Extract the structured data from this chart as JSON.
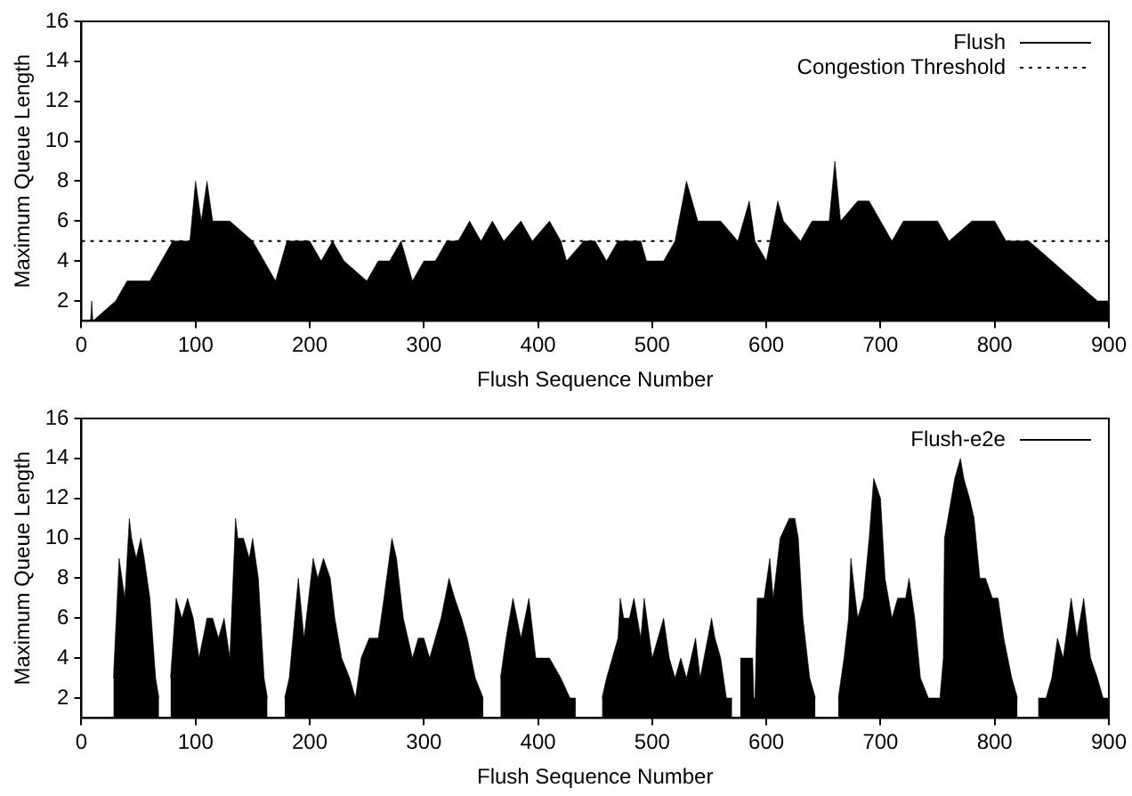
{
  "chart_data": [
    {
      "type": "area",
      "xlabel": "Flush Sequence Number",
      "ylabel": "Maximum Queue Length",
      "xlim": [
        0,
        900
      ],
      "xticks": [
        0,
        100,
        200,
        300,
        400,
        500,
        600,
        700,
        800,
        900
      ],
      "ylim": [
        1,
        16
      ],
      "yticks": [
        2,
        4,
        6,
        8,
        10,
        12,
        14,
        16
      ],
      "grid": false,
      "legend": "top right",
      "marker": "none",
      "line_style": "solid",
      "ref_lines": [
        {
          "axis": "y",
          "value": 5,
          "label": "Congestion Threshold",
          "color": "#000000",
          "line_style": "dotted"
        }
      ],
      "series": [
        {
          "name": "Flush",
          "color": "#000000",
          "x": [
            0,
            8,
            9,
            10,
            30,
            40,
            60,
            70,
            80,
            95,
            100,
            105,
            110,
            115,
            130,
            150,
            160,
            170,
            180,
            200,
            210,
            220,
            230,
            250,
            260,
            270,
            280,
            290,
            300,
            310,
            320,
            330,
            340,
            350,
            360,
            370,
            385,
            395,
            410,
            420,
            425,
            440,
            450,
            460,
            470,
            490,
            495,
            510,
            520,
            530,
            540,
            560,
            575,
            585,
            590,
            600,
            610,
            615,
            630,
            640,
            655,
            660,
            665,
            680,
            690,
            700,
            710,
            720,
            750,
            760,
            780,
            800,
            810,
            830,
            850,
            870,
            890,
            900
          ],
          "values": [
            1,
            1,
            2,
            1,
            2,
            3,
            3,
            4,
            5,
            5,
            8,
            6,
            8,
            6,
            6,
            5,
            4,
            3,
            5,
            5,
            4,
            5,
            4,
            3,
            4,
            4,
            5,
            3,
            4,
            4,
            5,
            5,
            6,
            5,
            6,
            5,
            6,
            5,
            6,
            5,
            4,
            5,
            5,
            4,
            5,
            5,
            4,
            4,
            5,
            8,
            6,
            6,
            5,
            7,
            5,
            4,
            7,
            6,
            5,
            6,
            6,
            9,
            6,
            7,
            7,
            6,
            5,
            6,
            6,
            5,
            6,
            6,
            5,
            5,
            4,
            3,
            2,
            2
          ]
        }
      ]
    },
    {
      "type": "area",
      "xlabel": "Flush Sequence Number",
      "ylabel": "Maximum Queue Length",
      "xlim": [
        0,
        900
      ],
      "xticks": [
        0,
        100,
        200,
        300,
        400,
        500,
        600,
        700,
        800,
        900
      ],
      "ylim": [
        1,
        16
      ],
      "yticks": [
        2,
        4,
        6,
        8,
        10,
        12,
        14,
        16
      ],
      "grid": false,
      "legend": "top right",
      "marker": "none",
      "line_style": "solid",
      "series": [
        {
          "name": "Flush-e2e",
          "color": "#000000",
          "x": [
            28,
            33,
            38,
            42,
            44,
            48,
            52,
            55,
            60,
            65,
            68,
            73,
            78,
            83,
            88,
            93,
            98,
            103,
            110,
            115,
            120,
            125,
            130,
            135,
            137,
            142,
            147,
            150,
            155,
            160,
            163,
            170,
            178,
            182,
            190,
            195,
            203,
            207,
            212,
            218,
            222,
            228,
            235,
            240,
            245,
            252,
            260,
            265,
            272,
            276,
            282,
            290,
            295,
            300,
            305,
            315,
            322,
            327,
            333,
            338,
            345,
            352,
            360,
            367,
            372,
            378,
            385,
            392,
            398,
            410,
            420,
            428,
            433,
            445,
            456,
            460,
            470,
            472,
            475,
            480,
            484,
            490,
            493,
            500,
            510,
            515,
            520,
            525,
            530,
            538,
            542,
            552,
            555,
            560,
            565,
            570,
            574,
            577,
            583,
            588,
            589,
            590,
            592,
            598,
            603,
            606,
            612,
            620,
            625,
            628,
            632,
            638,
            643,
            653,
            663,
            668,
            672,
            674,
            680,
            685,
            690,
            694,
            700,
            704,
            710,
            715,
            722,
            725,
            730,
            735,
            742,
            747,
            752,
            755,
            756,
            762,
            765,
            770,
            773,
            778,
            782,
            787,
            792,
            798,
            803,
            808,
            815,
            820,
            829,
            838,
            845,
            850,
            855,
            860,
            867,
            872,
            878,
            884,
            890,
            895,
            900
          ],
          "values": [
            3,
            9,
            7,
            11,
            10,
            9,
            10,
            9,
            7,
            3,
            2,
            null,
            3,
            7,
            6,
            7,
            6,
            4,
            6,
            6,
            5,
            6,
            4,
            11,
            10,
            10,
            9,
            10,
            8,
            3,
            2,
            null,
            2,
            3,
            8,
            5,
            9,
            8,
            9,
            8,
            6,
            4,
            3,
            2,
            4,
            5,
            5,
            7,
            10,
            9,
            6,
            4,
            5,
            5,
            4,
            6,
            8,
            7,
            6,
            5,
            3,
            2,
            null,
            3,
            5,
            7,
            5,
            7,
            4,
            4,
            3,
            2,
            2,
            null,
            2,
            3,
            5,
            7,
            6,
            6,
            7,
            5,
            7,
            4,
            6,
            4,
            3,
            4,
            3,
            5,
            3,
            6,
            5,
            4,
            2,
            2,
            null,
            4,
            4,
            4,
            2,
            2,
            7,
            7,
            9,
            7,
            10,
            11,
            11,
            10,
            6,
            3,
            2,
            null,
            2,
            4,
            6,
            9,
            6,
            7,
            10,
            13,
            12,
            8,
            6,
            7,
            7,
            8,
            6,
            3,
            2,
            2,
            2,
            4,
            10,
            12,
            13,
            14,
            13,
            12,
            11,
            8,
            8,
            7,
            7,
            5,
            3,
            2,
            null,
            2,
            2,
            3,
            5,
            4,
            7,
            5,
            7,
            4,
            3,
            2,
            2
          ]
        }
      ]
    }
  ]
}
